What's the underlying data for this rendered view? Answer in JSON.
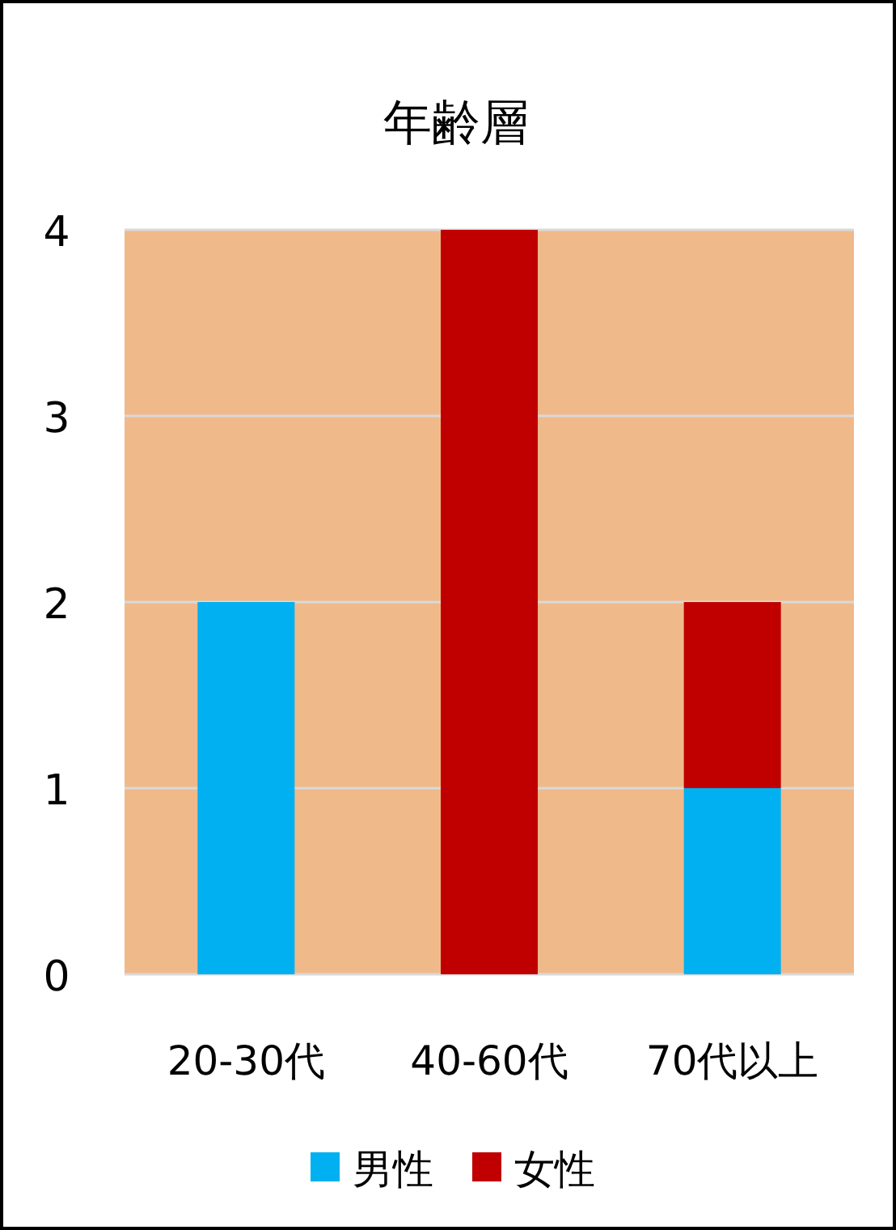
{
  "chart_data": {
    "type": "bar",
    "title": "年齢層",
    "categories": [
      "20-30代",
      "40-60代",
      "70代以上"
    ],
    "stacked": true,
    "series": [
      {
        "name": "男性",
        "color": "#00b0f0",
        "values": [
          2,
          0,
          1
        ]
      },
      {
        "name": "女性",
        "color": "#c00000",
        "values": [
          0,
          4,
          1
        ]
      }
    ],
    "ylim": [
      0,
      4
    ],
    "yticks": [
      0,
      1,
      2,
      3,
      4
    ],
    "grid": "y",
    "legend": "bottom"
  }
}
